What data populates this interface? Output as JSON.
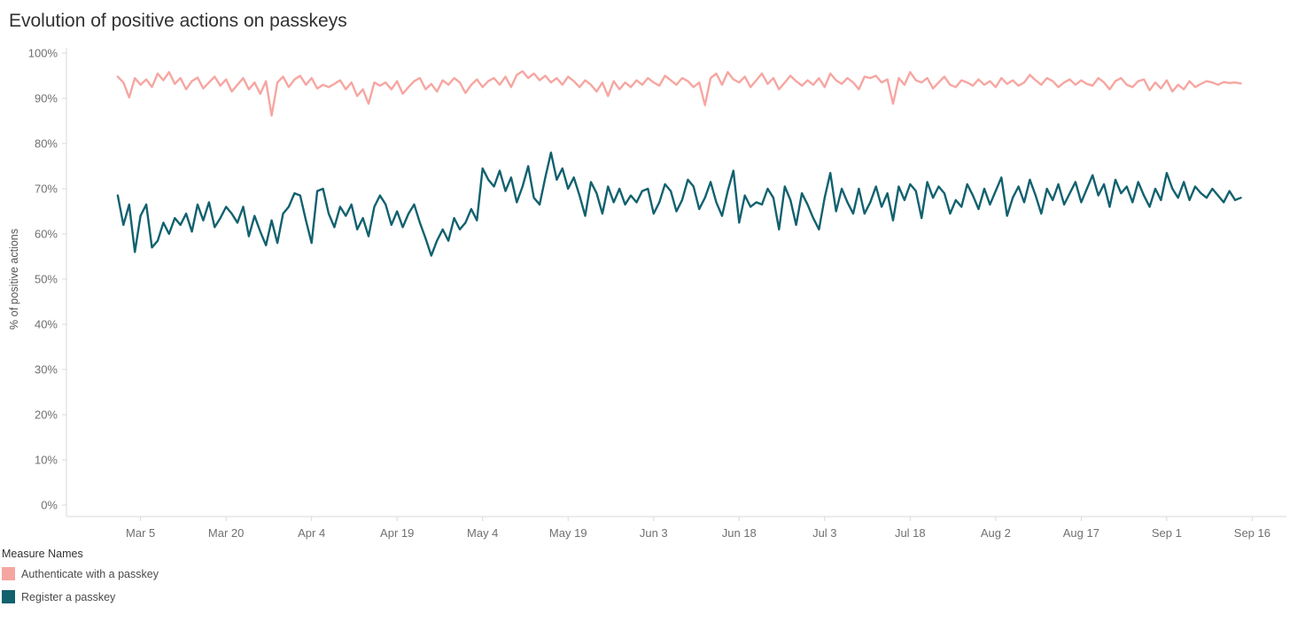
{
  "page": {
    "title": "Evolution of positive actions on passkeys"
  },
  "y_axis": {
    "label": "% of positive actions"
  },
  "legend": {
    "title": "Measure Names",
    "items": [
      {
        "label": "Authenticate with a passkey",
        "color": "#f6a6a1"
      },
      {
        "label": "Register a passkey",
        "color": "#12616f"
      }
    ]
  },
  "chart_data": {
    "type": "line",
    "title": "Evolution of positive actions on passkeys",
    "xlabel": "",
    "ylabel": "% of positive actions",
    "x_unit": "day index from Mar 1",
    "x_domain": [
      -9,
      205
    ],
    "y_domain": [
      0,
      100
    ],
    "grid": false,
    "legend_position": "bottom-left",
    "y_ticks": [
      "0%",
      "10%",
      "20%",
      "30%",
      "40%",
      "50%",
      "60%",
      "70%",
      "80%",
      "90%",
      "100%"
    ],
    "x_ticks": [
      {
        "day": 4,
        "label": "Mar 5"
      },
      {
        "day": 19,
        "label": "Mar 20"
      },
      {
        "day": 34,
        "label": "Apr 4"
      },
      {
        "day": 49,
        "label": "Apr 19"
      },
      {
        "day": 64,
        "label": "May 4"
      },
      {
        "day": 79,
        "label": "May 19"
      },
      {
        "day": 94,
        "label": "Jun 3"
      },
      {
        "day": 109,
        "label": "Jun 18"
      },
      {
        "day": 124,
        "label": "Jul 3"
      },
      {
        "day": 139,
        "label": "Jul 18"
      },
      {
        "day": 154,
        "label": "Aug 2"
      },
      {
        "day": 169,
        "label": "Aug 17"
      },
      {
        "day": 184,
        "label": "Sep 1"
      },
      {
        "day": 199,
        "label": "Sep 16"
      }
    ],
    "series": [
      {
        "name": "Authenticate with a passkey",
        "color": "#f6a6a1",
        "values": [
          94.8,
          93.5,
          90.2,
          94.5,
          93.0,
          94.2,
          92.5,
          95.5,
          94.0,
          95.8,
          93.2,
          94.5,
          92.0,
          93.8,
          94.6,
          92.2,
          93.5,
          94.8,
          92.8,
          94.2,
          91.5,
          93.0,
          94.5,
          92.0,
          93.5,
          91.0,
          93.8,
          86.2,
          93.5,
          94.8,
          92.5,
          94.2,
          95.0,
          93.0,
          94.5,
          92.2,
          93.0,
          92.5,
          93.2,
          94.0,
          92.0,
          93.5,
          90.5,
          92.0,
          88.8,
          93.5,
          92.8,
          93.5,
          92.0,
          93.8,
          91.0,
          92.5,
          93.8,
          94.5,
          92.0,
          93.2,
          91.5,
          94.0,
          93.0,
          94.5,
          93.5,
          91.2,
          93.0,
          94.2,
          92.5,
          93.8,
          94.5,
          93.0,
          94.8,
          92.5,
          95.2,
          96.0,
          94.5,
          95.5,
          94.0,
          95.0,
          93.5,
          94.5,
          93.0,
          94.8,
          93.8,
          92.5,
          94.0,
          93.0,
          91.5,
          93.5,
          90.5,
          93.8,
          92.0,
          93.5,
          92.5,
          94.0,
          93.0,
          94.5,
          93.5,
          92.8,
          95.0,
          94.0,
          93.0,
          94.5,
          93.8,
          92.5,
          93.5,
          88.5,
          94.5,
          95.5,
          93.0,
          95.8,
          94.2,
          93.5,
          94.8,
          92.5,
          94.0,
          95.5,
          93.2,
          94.5,
          92.0,
          93.5,
          95.0,
          93.8,
          92.8,
          94.0,
          93.0,
          94.5,
          92.5,
          95.5,
          94.0,
          93.2,
          94.5,
          93.5,
          92.0,
          94.8,
          94.5,
          95.0,
          93.5,
          94.2,
          88.8,
          94.5,
          93.0,
          95.8,
          94.0,
          93.5,
          94.5,
          92.2,
          93.5,
          94.8,
          93.0,
          92.5,
          94.0,
          93.5,
          92.8,
          94.2,
          93.0,
          93.8,
          92.5,
          94.5,
          93.2,
          94.0,
          92.8,
          93.5,
          95.2,
          94.0,
          93.0,
          94.5,
          93.8,
          92.5,
          93.5,
          94.2,
          93.0,
          94.0,
          93.2,
          92.8,
          94.5,
          93.5,
          92.0,
          93.8,
          94.5,
          93.0,
          92.5,
          93.8,
          94.2,
          91.8,
          93.5,
          92.2,
          94.0,
          91.5,
          93.0,
          92.0,
          93.8,
          92.5,
          93.2,
          93.8,
          93.5,
          93.0,
          93.6,
          93.4,
          93.5,
          93.3
        ]
      },
      {
        "name": "Register a passkey",
        "color": "#12616f",
        "values": [
          68.5,
          62.0,
          66.5,
          56.0,
          64.0,
          66.5,
          57.0,
          58.5,
          62.5,
          60.0,
          63.5,
          62.0,
          64.5,
          60.5,
          66.5,
          63.0,
          67.0,
          61.5,
          63.5,
          66.0,
          64.5,
          62.5,
          66.0,
          59.5,
          64.0,
          60.5,
          57.5,
          63.0,
          58.0,
          64.5,
          66.0,
          69.0,
          68.5,
          63.0,
          58.0,
          69.5,
          70.0,
          64.5,
          61.5,
          66.0,
          64.0,
          66.5,
          61.0,
          63.5,
          59.5,
          66.0,
          68.5,
          66.5,
          62.0,
          65.0,
          61.5,
          64.5,
          66.5,
          62.5,
          59.0,
          55.2,
          58.5,
          61.0,
          58.5,
          63.5,
          61.0,
          62.5,
          65.5,
          63.0,
          74.5,
          72.0,
          70.5,
          74.0,
          69.5,
          72.5,
          67.0,
          70.5,
          75.0,
          68.0,
          66.5,
          72.5,
          78.0,
          72.0,
          74.5,
          70.0,
          72.5,
          68.5,
          64.0,
          71.5,
          69.0,
          64.5,
          70.5,
          67.0,
          70.0,
          66.5,
          68.5,
          67.0,
          69.5,
          70.0,
          64.5,
          67.0,
          71.0,
          69.5,
          65.0,
          67.5,
          72.0,
          70.5,
          65.5,
          68.0,
          71.5,
          67.0,
          64.0,
          69.5,
          74.0,
          62.5,
          68.5,
          66.0,
          67.0,
          66.5,
          70.0,
          68.0,
          61.0,
          70.5,
          67.5,
          62.0,
          69.0,
          66.5,
          63.5,
          61.0,
          68.0,
          73.5,
          65.0,
          70.0,
          67.0,
          64.5,
          70.0,
          64.5,
          67.0,
          70.5,
          66.0,
          69.0,
          63.0,
          70.5,
          67.5,
          71.0,
          69.5,
          63.5,
          71.5,
          68.0,
          70.5,
          69.0,
          64.5,
          67.5,
          66.0,
          71.0,
          68.5,
          65.5,
          70.0,
          66.5,
          69.5,
          72.5,
          64.0,
          68.0,
          70.5,
          67.0,
          72.0,
          68.5,
          64.5,
          70.0,
          67.5,
          71.0,
          66.5,
          69.0,
          71.5,
          67.0,
          70.0,
          73.0,
          68.5,
          71.0,
          66.0,
          72.0,
          69.0,
          70.5,
          67.0,
          71.5,
          68.5,
          66.0,
          70.0,
          67.5,
          73.5,
          70.0,
          68.0,
          71.5,
          67.5,
          70.5,
          69.0,
          68.0,
          70.0,
          68.5,
          67.0,
          69.5,
          67.5,
          68.0
        ]
      }
    ]
  }
}
